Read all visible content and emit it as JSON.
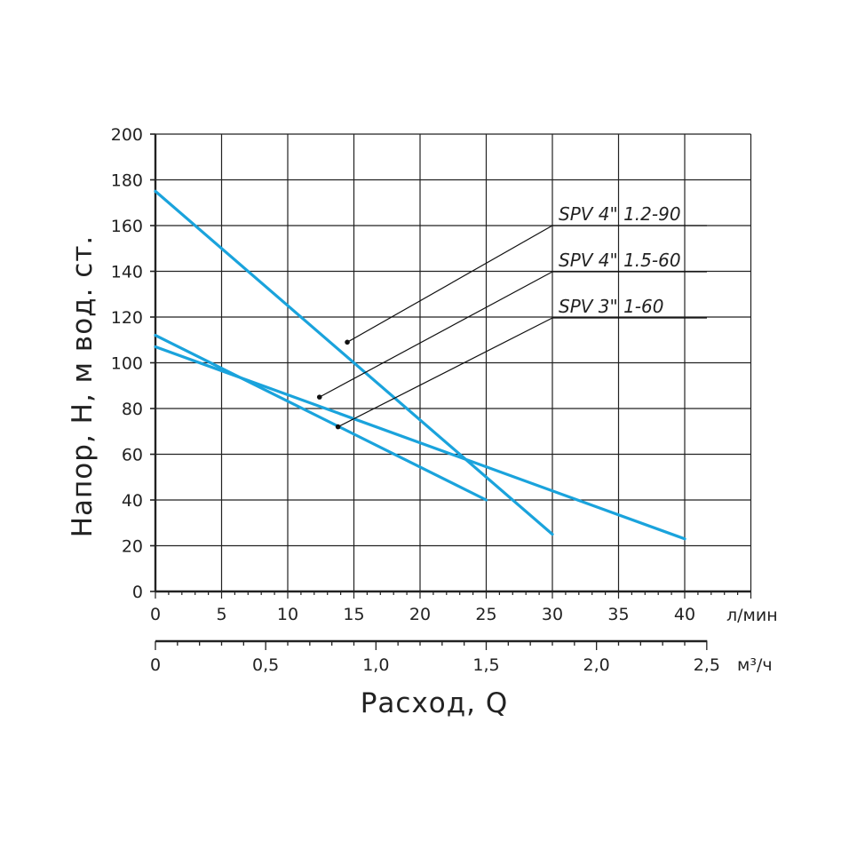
{
  "chart_data": {
    "type": "line",
    "ylabel": "Напор, H, м вод. ст.",
    "xlabel": "Расход, Q",
    "x_unit": "л/мин",
    "x2_unit": "м³/ч",
    "xlim": [
      0,
      45
    ],
    "ylim": [
      0,
      200
    ],
    "x_ticks": [
      "0",
      "5",
      "10",
      "15",
      "20",
      "25",
      "30",
      "35",
      "40"
    ],
    "x2_ticks": [
      "0",
      "0,5",
      "1,0",
      "1,5",
      "2,0",
      "2,5"
    ],
    "y_ticks": [
      "0",
      "20",
      "40",
      "60",
      "80",
      "100",
      "120",
      "140",
      "160",
      "180",
      "200"
    ],
    "grid": true,
    "line_color": "#1aa3dc",
    "series": [
      {
        "name": "SPV 4\" 1.2-90",
        "x": [
          0,
          30
        ],
        "y": [
          175,
          25
        ],
        "label_anchor": [
          14.5,
          109
        ]
      },
      {
        "name": "SPV 4\" 1.5-60",
        "x": [
          0,
          40
        ],
        "y": [
          107,
          23
        ],
        "label_anchor": [
          12.4,
          85
        ]
      },
      {
        "name": "SPV 3\" 1-60",
        "x": [
          0,
          25
        ],
        "y": [
          112,
          40
        ],
        "label_anchor": [
          13.8,
          72
        ]
      }
    ]
  }
}
